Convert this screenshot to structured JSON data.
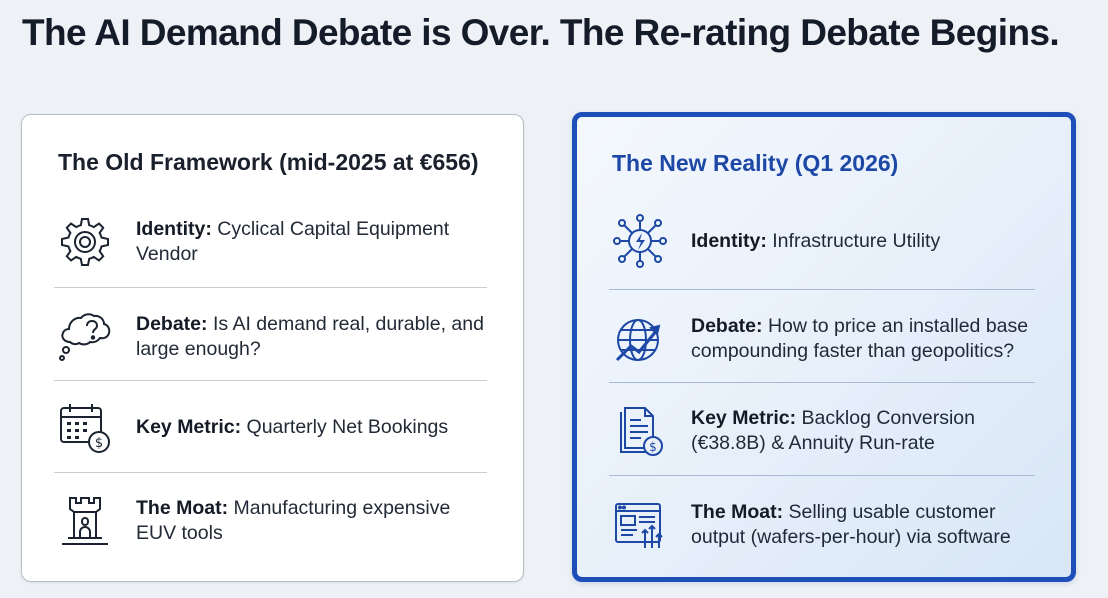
{
  "headline": "The AI Demand Debate is Over. The Re-rating Debate Begins.",
  "colors": {
    "accent_blue": "#1d4fb8",
    "new_title": "#1d48a6",
    "text_dark": "#151b26",
    "old_border": "#b9bec6"
  },
  "old": {
    "title": "The Old Framework (mid-2025 at €656)",
    "rows": [
      {
        "icon": "gear-icon",
        "label": "Identity:",
        "text": "Cyclical Capital Equipment Vendor"
      },
      {
        "icon": "thought-bubble-question-icon",
        "label": "Debate:",
        "text": "Is AI demand real, durable, and large enough?"
      },
      {
        "icon": "calendar-euro-icon",
        "label": "Key Metric:",
        "text": "Quarterly Net Bookings"
      },
      {
        "icon": "castle-tower-icon",
        "label": "The Moat:",
        "text": "Manufacturing expensive EUV tools"
      }
    ]
  },
  "new": {
    "title": "The New Reality (Q1 2026)",
    "rows": [
      {
        "icon": "network-lightning-icon",
        "label": "Identity:",
        "text": "Infrastructure Utility"
      },
      {
        "icon": "globe-growth-arrow-icon",
        "label": "Debate:",
        "text": "How to price an installed base compounding faster than geopolitics?"
      },
      {
        "icon": "documents-euro-icon",
        "label": "Key Metric:",
        "text": "Backlog Conversion (€38.8B) & Annuity Run-rate"
      },
      {
        "icon": "software-dashboard-icon",
        "label": "The Moat:",
        "text": "Selling usable customer output (wafers-per-hour) via software"
      }
    ]
  }
}
